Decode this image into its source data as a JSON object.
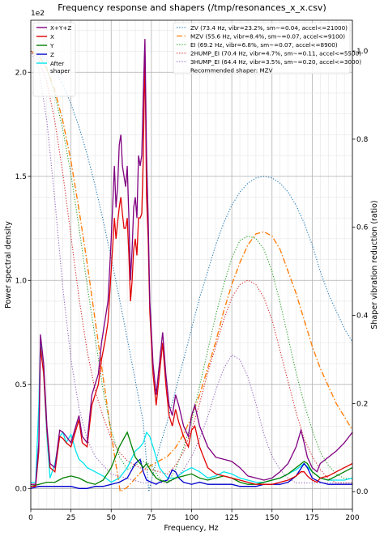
{
  "chart_data": {
    "type": "line",
    "title": "Frequency response and shapers (/tmp/resonances_x_x.csv)",
    "xlabel": "Frequency, Hz",
    "ylabel_left": "Power spectral density",
    "ylabel_right": "Shaper vibration reduction (ratio)",
    "left_scale_label": "1e2",
    "xlim": [
      0,
      200
    ],
    "ylim_left": [
      -0.1,
      2.25
    ],
    "ylim_right": [
      -0.04,
      1.07
    ],
    "xticks": [
      "0",
      "25",
      "50",
      "75",
      "100",
      "125",
      "150",
      "175",
      "200"
    ],
    "yticks_left": [
      "0.0",
      "0.5",
      "1.0",
      "1.5",
      "2.0"
    ],
    "yticks_right": [
      "0.0",
      "0.2",
      "0.4",
      "0.6",
      "0.8",
      "1.0"
    ],
    "grid": true,
    "psd_series": [
      {
        "name": "X+Y+Z",
        "color": "#800080",
        "style": "solid",
        "x": [
          0,
          3,
          5,
          6,
          8,
          10,
          12,
          15,
          18,
          20,
          22,
          25,
          28,
          30,
          32,
          35,
          38,
          40,
          42,
          44,
          46,
          48,
          50,
          52,
          53,
          54,
          55,
          56,
          57,
          58,
          59,
          60,
          61,
          62,
          63,
          64,
          65,
          66,
          67,
          68,
          69,
          70,
          71,
          72,
          73,
          74,
          75,
          76,
          78,
          80,
          82,
          84,
          86,
          88,
          90,
          92,
          95,
          98,
          100,
          102,
          105,
          110,
          115,
          120,
          125,
          130,
          135,
          140,
          145,
          150,
          155,
          160,
          165,
          168,
          170,
          172,
          175,
          178,
          180,
          185,
          190,
          195,
          200
        ],
        "y": [
          0.02,
          0.02,
          0.22,
          0.74,
          0.6,
          0.3,
          0.12,
          0.1,
          0.28,
          0.27,
          0.25,
          0.22,
          0.3,
          0.35,
          0.25,
          0.22,
          0.45,
          0.5,
          0.55,
          0.7,
          0.8,
          0.9,
          1.2,
          1.55,
          1.35,
          1.45,
          1.65,
          1.7,
          1.55,
          1.5,
          1.45,
          1.55,
          1.3,
          1.0,
          1.15,
          1.35,
          1.4,
          1.3,
          1.6,
          1.55,
          1.6,
          1.9,
          2.16,
          1.6,
          1.3,
          0.9,
          0.75,
          0.6,
          0.45,
          0.6,
          0.75,
          0.55,
          0.4,
          0.35,
          0.45,
          0.4,
          0.3,
          0.25,
          0.35,
          0.4,
          0.3,
          0.2,
          0.15,
          0.14,
          0.13,
          0.1,
          0.06,
          0.05,
          0.04,
          0.05,
          0.08,
          0.12,
          0.2,
          0.28,
          0.22,
          0.15,
          0.1,
          0.08,
          0.12,
          0.15,
          0.18,
          0.22,
          0.27
        ]
      },
      {
        "name": "X",
        "color": "#e00000",
        "style": "solid",
        "x": [
          0,
          3,
          5,
          6,
          8,
          10,
          12,
          15,
          18,
          20,
          22,
          25,
          28,
          30,
          32,
          35,
          38,
          40,
          42,
          44,
          46,
          48,
          50,
          52,
          53,
          54,
          55,
          56,
          57,
          58,
          59,
          60,
          61,
          62,
          63,
          64,
          65,
          66,
          67,
          68,
          69,
          70,
          71,
          72,
          73,
          74,
          75,
          76,
          78,
          80,
          82,
          84,
          86,
          88,
          90,
          92,
          95,
          98,
          100,
          102,
          105,
          110,
          115,
          120,
          125,
          130,
          135,
          140,
          145,
          150,
          155,
          160,
          165,
          168,
          170,
          172,
          175,
          178,
          180,
          185,
          190,
          195,
          200
        ],
        "y": [
          0.01,
          0.01,
          0.18,
          0.68,
          0.55,
          0.28,
          0.1,
          0.08,
          0.25,
          0.24,
          0.22,
          0.2,
          0.28,
          0.33,
          0.22,
          0.2,
          0.4,
          0.45,
          0.5,
          0.62,
          0.7,
          0.8,
          1.05,
          1.3,
          1.2,
          1.28,
          1.35,
          1.4,
          1.32,
          1.25,
          1.25,
          1.3,
          1.12,
          0.9,
          1.0,
          1.15,
          1.2,
          1.12,
          1.3,
          1.3,
          1.32,
          1.6,
          2.1,
          1.4,
          1.2,
          0.85,
          0.7,
          0.55,
          0.4,
          0.55,
          0.7,
          0.5,
          0.35,
          0.3,
          0.38,
          0.32,
          0.25,
          0.2,
          0.28,
          0.3,
          0.2,
          0.1,
          0.07,
          0.06,
          0.05,
          0.04,
          0.03,
          0.02,
          0.02,
          0.02,
          0.03,
          0.04,
          0.06,
          0.08,
          0.08,
          0.06,
          0.04,
          0.03,
          0.05,
          0.06,
          0.08,
          0.1,
          0.12
        ]
      },
      {
        "name": "Y",
        "color": "#008000",
        "style": "solid",
        "x": [
          0,
          5,
          10,
          15,
          20,
          25,
          30,
          35,
          40,
          45,
          50,
          55,
          60,
          65,
          70,
          72,
          75,
          78,
          80,
          85,
          90,
          95,
          100,
          105,
          110,
          115,
          120,
          125,
          130,
          135,
          140,
          145,
          150,
          155,
          160,
          165,
          170,
          172,
          175,
          180,
          185,
          190,
          195,
          200
        ],
        "y": [
          0.01,
          0.02,
          0.03,
          0.03,
          0.05,
          0.06,
          0.05,
          0.03,
          0.02,
          0.04,
          0.1,
          0.2,
          0.27,
          0.15,
          0.1,
          0.12,
          0.08,
          0.05,
          0.04,
          0.03,
          0.05,
          0.06,
          0.07,
          0.05,
          0.04,
          0.05,
          0.06,
          0.05,
          0.03,
          0.02,
          0.02,
          0.03,
          0.04,
          0.05,
          0.07,
          0.1,
          0.13,
          0.12,
          0.08,
          0.05,
          0.04,
          0.06,
          0.08,
          0.1
        ]
      },
      {
        "name": "Z",
        "color": "#0000cc",
        "style": "solid",
        "x": [
          0,
          5,
          10,
          15,
          20,
          25,
          30,
          35,
          40,
          45,
          50,
          55,
          60,
          65,
          68,
          70,
          72,
          75,
          78,
          80,
          85,
          88,
          90,
          92,
          95,
          100,
          105,
          110,
          115,
          120,
          125,
          130,
          135,
          140,
          145,
          150,
          155,
          160,
          165,
          170,
          172,
          175,
          180,
          185,
          190,
          195,
          200
        ],
        "y": [
          0.0,
          0.01,
          0.01,
          0.01,
          0.01,
          0.01,
          0.0,
          0.0,
          0.01,
          0.01,
          0.02,
          0.03,
          0.05,
          0.12,
          0.14,
          0.08,
          0.04,
          0.03,
          0.02,
          0.03,
          0.04,
          0.09,
          0.08,
          0.05,
          0.03,
          0.02,
          0.03,
          0.02,
          0.02,
          0.02,
          0.02,
          0.01,
          0.01,
          0.01,
          0.02,
          0.02,
          0.02,
          0.03,
          0.06,
          0.12,
          0.1,
          0.05,
          0.03,
          0.02,
          0.02,
          0.02,
          0.02
        ]
      },
      {
        "name": "After\nshaper",
        "color": "#00e5ee",
        "style": "solid",
        "x": [
          0,
          3,
          5,
          6,
          8,
          10,
          12,
          15,
          18,
          20,
          22,
          25,
          28,
          30,
          33,
          35,
          40,
          45,
          50,
          55,
          60,
          65,
          68,
          70,
          72,
          74,
          76,
          78,
          80,
          85,
          90,
          95,
          100,
          105,
          110,
          115,
          120,
          125,
          130,
          135,
          140,
          145,
          150,
          155,
          160,
          165,
          170,
          175,
          180,
          185,
          190,
          195,
          200
        ],
        "y": [
          0.03,
          0.03,
          0.4,
          0.7,
          0.55,
          0.25,
          0.05,
          0.12,
          0.25,
          0.27,
          0.22,
          0.26,
          0.18,
          0.14,
          0.12,
          0.1,
          0.08,
          0.06,
          0.03,
          0.05,
          0.1,
          0.18,
          0.2,
          0.22,
          0.27,
          0.25,
          0.2,
          0.15,
          0.1,
          0.05,
          0.05,
          0.08,
          0.1,
          0.08,
          0.05,
          0.06,
          0.08,
          0.07,
          0.05,
          0.04,
          0.03,
          0.03,
          0.04,
          0.05,
          0.07,
          0.09,
          0.12,
          0.08,
          0.05,
          0.04,
          0.04,
          0.04,
          0.05
        ]
      }
    ],
    "shaper_series": [
      {
        "name": "ZV (73.4 Hz, vibr=23.2%, sm~=0.04, accel<=21000)",
        "color": "#1f77b4",
        "style": "dotted",
        "x": [
          0,
          5,
          10,
          15,
          20,
          25,
          30,
          35,
          40,
          45,
          50,
          55,
          60,
          65,
          70,
          73.4,
          80,
          85,
          90,
          95,
          100,
          105,
          110,
          115,
          120,
          125,
          130,
          135,
          140,
          145,
          150,
          155,
          160,
          165,
          170,
          175,
          180,
          185,
          190,
          195,
          200
        ],
        "y": [
          1.0,
          0.995,
          0.98,
          0.956,
          0.923,
          0.88,
          0.828,
          0.766,
          0.695,
          0.616,
          0.53,
          0.44,
          0.347,
          0.252,
          0.157,
          0.0,
          0.1,
          0.16,
          0.23,
          0.3,
          0.37,
          0.44,
          0.5,
          0.56,
          0.61,
          0.65,
          0.68,
          0.7,
          0.712,
          0.716,
          0.712,
          0.7,
          0.68,
          0.65,
          0.61,
          0.56,
          0.5,
          0.45,
          0.41,
          0.37,
          0.34
        ]
      },
      {
        "name": "MZV (55.6 Hz, vibr=8.4%, sm~=0.07, accel<=9100)",
        "color": "#ff7f0e",
        "style": "dashdot",
        "x": [
          0,
          5,
          10,
          15,
          20,
          25,
          30,
          35,
          40,
          45,
          50,
          55.6,
          60,
          65,
          70,
          75,
          80,
          85,
          90,
          95,
          100,
          105,
          110,
          115,
          120,
          125,
          130,
          135,
          140,
          145,
          150,
          155,
          160,
          165,
          170,
          175,
          180,
          185,
          190,
          195,
          200
        ],
        "y": [
          1.0,
          0.99,
          0.96,
          0.91,
          0.84,
          0.75,
          0.64,
          0.52,
          0.39,
          0.26,
          0.13,
          0.0,
          0.01,
          0.03,
          0.05,
          0.06,
          0.07,
          0.08,
          0.1,
          0.13,
          0.17,
          0.22,
          0.28,
          0.34,
          0.41,
          0.47,
          0.52,
          0.56,
          0.585,
          0.59,
          0.58,
          0.55,
          0.5,
          0.45,
          0.39,
          0.33,
          0.28,
          0.24,
          0.2,
          0.17,
          0.14
        ]
      },
      {
        "name": "EI (69.2 Hz, vibr=6.8%, sm~=0.07, accel<=8900)",
        "color": "#2ca02c",
        "style": "dotted",
        "x": [
          0,
          5,
          10,
          15,
          20,
          25,
          30,
          35,
          40,
          45,
          50,
          55,
          60,
          65,
          69.2,
          75,
          80,
          85,
          90,
          95,
          100,
          105,
          110,
          115,
          120,
          125,
          130,
          135,
          140,
          145,
          150,
          155,
          160,
          165,
          170,
          175,
          180,
          185,
          190,
          195,
          200
        ],
        "y": [
          1.0,
          0.99,
          0.96,
          0.9,
          0.82,
          0.72,
          0.6,
          0.47,
          0.35,
          0.23,
          0.14,
          0.08,
          0.05,
          0.06,
          0.07,
          0.06,
          0.03,
          0.02,
          0.05,
          0.1,
          0.16,
          0.24,
          0.32,
          0.4,
          0.47,
          0.53,
          0.57,
          0.58,
          0.575,
          0.55,
          0.5,
          0.43,
          0.35,
          0.27,
          0.2,
          0.14,
          0.09,
          0.06,
          0.04,
          0.03,
          0.03
        ]
      },
      {
        "name": "2HUMP_EI (70.4 Hz, vibr=4.7%, sm~=0.11, accel<=5500)",
        "color": "#d62728",
        "style": "dotted",
        "x": [
          0,
          5,
          10,
          15,
          20,
          25,
          30,
          35,
          40,
          45,
          50,
          55,
          60,
          65,
          70,
          75,
          80,
          85,
          90,
          95,
          100,
          105,
          110,
          115,
          120,
          125,
          130,
          135,
          140,
          145,
          150,
          155,
          160,
          165,
          170,
          175,
          180,
          185,
          190,
          195,
          200
        ],
        "y": [
          1.0,
          0.98,
          0.93,
          0.84,
          0.72,
          0.58,
          0.44,
          0.32,
          0.23,
          0.17,
          0.12,
          0.09,
          0.07,
          0.06,
          0.05,
          0.05,
          0.045,
          0.04,
          0.06,
          0.09,
          0.14,
          0.2,
          0.27,
          0.33,
          0.39,
          0.44,
          0.47,
          0.48,
          0.47,
          0.44,
          0.39,
          0.32,
          0.25,
          0.18,
          0.12,
          0.08,
          0.05,
          0.03,
          0.02,
          0.02,
          0.02
        ]
      },
      {
        "name": "3HUMP_EI (64.4 Hz, vibr=3.5%, sm~=0.20, accel<=3000)",
        "color": "#9467bd",
        "style": "dotted",
        "x": [
          0,
          5,
          10,
          15,
          20,
          25,
          30,
          35,
          40,
          45,
          50,
          55,
          60,
          65,
          70,
          75,
          80,
          85,
          90,
          95,
          100,
          105,
          110,
          115,
          120,
          125,
          130,
          135,
          140,
          145,
          150,
          155,
          160,
          165,
          170,
          175,
          180,
          185,
          190,
          195,
          200
        ],
        "y": [
          1.0,
          0.96,
          0.84,
          0.66,
          0.46,
          0.3,
          0.19,
          0.12,
          0.08,
          0.06,
          0.04,
          0.035,
          0.03,
          0.025,
          0.02,
          0.02,
          0.02,
          0.02,
          0.03,
          0.05,
          0.08,
          0.12,
          0.17,
          0.23,
          0.28,
          0.31,
          0.3,
          0.26,
          0.2,
          0.13,
          0.08,
          0.05,
          0.03,
          0.02,
          0.02,
          0.02,
          0.02,
          0.02,
          0.02,
          0.02,
          0.02
        ]
      }
    ],
    "legend_left": [
      {
        "name": "X+Y+Z",
        "color": "#800080"
      },
      {
        "name": "X",
        "color": "#e00000"
      },
      {
        "name": "Y",
        "color": "#008000"
      },
      {
        "name": "Z",
        "color": "#0000cc"
      },
      {
        "name": "After",
        "name2": "shaper",
        "color": "#00e5ee"
      }
    ],
    "legend_right": [
      {
        "name": "ZV (73.4 Hz, vibr=23.2%, sm~=0.04, accel<=21000)",
        "color": "#1f77b4",
        "style": "dotted"
      },
      {
        "name": "MZV (55.6 Hz, vibr=8.4%, sm~=0.07, accel<=9100)",
        "color": "#ff7f0e",
        "style": "dashdot"
      },
      {
        "name": "EI (69.2 Hz, vibr=6.8%, sm~=0.07, accel<=8900)",
        "color": "#2ca02c",
        "style": "dotted"
      },
      {
        "name": "2HUMP_EI (70.4 Hz, vibr=4.7%, sm~=0.11, accel<=5500)",
        "color": "#d62728",
        "style": "dotted"
      },
      {
        "name": "3HUMP_EI (64.4 Hz, vibr=3.5%, sm~=0.20, accel<=3000)",
        "color": "#9467bd",
        "style": "dotted"
      }
    ],
    "recommended": "Recommended shaper: MZV",
    "legend_placement_left": "top-left",
    "legend_placement_right": "top-right"
  }
}
